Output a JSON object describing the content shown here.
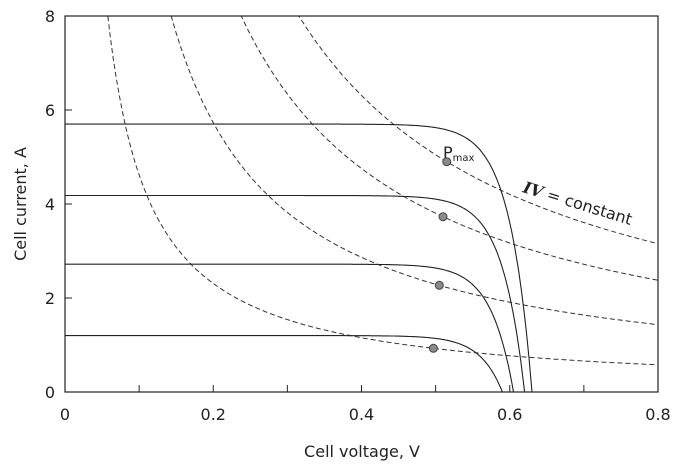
{
  "chart_data": {
    "type": "line",
    "xlabel": "Cell voltage, V",
    "ylabel": "Cell current, A",
    "xlim": [
      0,
      0.8
    ],
    "ylim": [
      0,
      8
    ],
    "x_ticks": [
      0,
      0.1,
      0.2,
      0.3,
      0.4,
      0.5,
      0.6,
      0.7,
      0.8
    ],
    "x_tick_labels": [
      "0",
      "",
      "0.2",
      "",
      "0.4",
      "",
      "0.6",
      "",
      "0.8"
    ],
    "y_ticks": [
      0,
      2,
      4,
      6,
      8
    ],
    "y_tick_labels": [
      "0",
      "2",
      "4",
      "6",
      "8"
    ],
    "grid": false,
    "iv_curves": [
      {
        "isc": 5.7,
        "voc": 0.63,
        "vt": 0.03
      },
      {
        "isc": 4.18,
        "voc": 0.62,
        "vt": 0.03
      },
      {
        "isc": 2.72,
        "voc": 0.605,
        "vt": 0.03
      },
      {
        "isc": 1.2,
        "voc": 0.59,
        "vt": 0.03
      }
    ],
    "max_power_points": [
      {
        "x": 0.515,
        "y": 4.9
      },
      {
        "x": 0.51,
        "y": 3.73
      },
      {
        "x": 0.505,
        "y": 2.27
      },
      {
        "x": 0.497,
        "y": 0.93
      }
    ],
    "constant_power_curves": [
      {
        "power": 0.462
      },
      {
        "power": 1.146
      },
      {
        "power": 1.902
      },
      {
        "power": 2.524
      }
    ],
    "annotations": {
      "pmax_main": "P",
      "pmax_sub": "max",
      "iv_italic": "IV",
      "iv_rest": " = constant"
    }
  }
}
